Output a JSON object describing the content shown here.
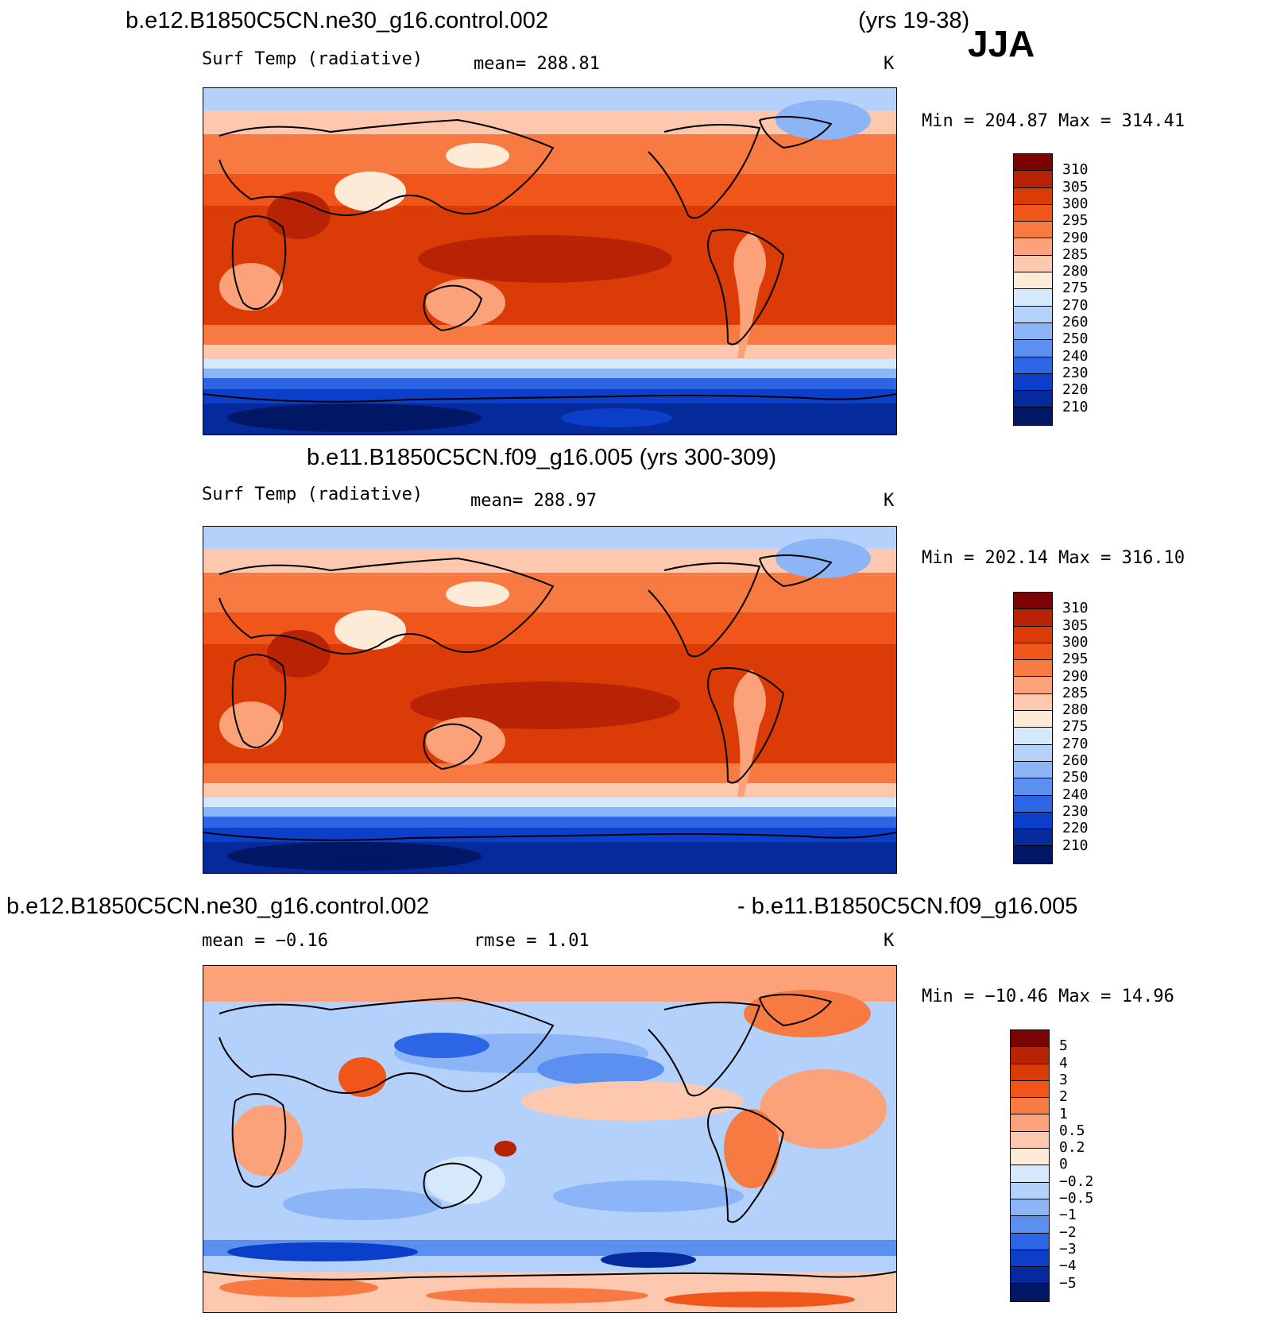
{
  "header": {
    "case1": "b.e12.B1850C5CN.ne30_g16.control.002",
    "yrs1": "(yrs 19-38)",
    "season": "JJA",
    "case2_title": "b.e11.B1850C5CN.f09_g16.005 (yrs 300-309)",
    "diff_left": "b.e12.B1850C5CN.ne30_g16.control.002",
    "diff_right": "- b.e11.B1850C5CN.f09_g16.005"
  },
  "panels": [
    {
      "field": "Surf Temp (radiative)",
      "stat": "mean=  288.81",
      "units": "K",
      "minmax": "Min = 204.87 Max = 314.41",
      "levels": [
        "310",
        "305",
        "300",
        "295",
        "290",
        "285",
        "280",
        "275",
        "270",
        "260",
        "250",
        "240",
        "230",
        "220",
        "210"
      ],
      "colors": [
        "#7a0403",
        "#b82305",
        "#db3c07",
        "#f0551a",
        "#f87a43",
        "#fca27a",
        "#fdc8ad",
        "#fdebd8",
        "#d6e8fb",
        "#b3d1fa",
        "#8bb5f7",
        "#5b8ff0",
        "#2c66e5",
        "#0b3fc9",
        "#042a9c",
        "#001766"
      ]
    },
    {
      "field": "Surf Temp (radiative)",
      "stat": "mean=  288.97",
      "units": "K",
      "minmax": "Min = 202.14 Max = 316.10",
      "levels": [
        "310",
        "305",
        "300",
        "295",
        "290",
        "285",
        "280",
        "275",
        "270",
        "260",
        "250",
        "240",
        "230",
        "220",
        "210"
      ],
      "colors": [
        "#7a0403",
        "#b82305",
        "#db3c07",
        "#f0551a",
        "#f87a43",
        "#fca27a",
        "#fdc8ad",
        "#fdebd8",
        "#d6e8fb",
        "#b3d1fa",
        "#8bb5f7",
        "#5b8ff0",
        "#2c66e5",
        "#0b3fc9",
        "#042a9c",
        "#001766"
      ]
    },
    {
      "field": "mean =   −0.16",
      "stat": "rmse =    1.01",
      "units": "K",
      "minmax": "Min = −10.46 Max =   14.96",
      "levels": [
        "5",
        "4",
        "3",
        "2",
        "1",
        "0.5",
        "0.2",
        "0",
        "−0.2",
        "−0.5",
        "−1",
        "−2",
        "−3",
        "−4",
        "−5"
      ],
      "colors": [
        "#7a0403",
        "#b82305",
        "#db3c07",
        "#f0551a",
        "#f87a43",
        "#fca27a",
        "#fdc8ad",
        "#fdebd8",
        "#d6e8fb",
        "#b3d1fa",
        "#8bb5f7",
        "#5b8ff0",
        "#2c66e5",
        "#0b3fc9",
        "#042a9c",
        "#001766"
      ]
    }
  ]
}
